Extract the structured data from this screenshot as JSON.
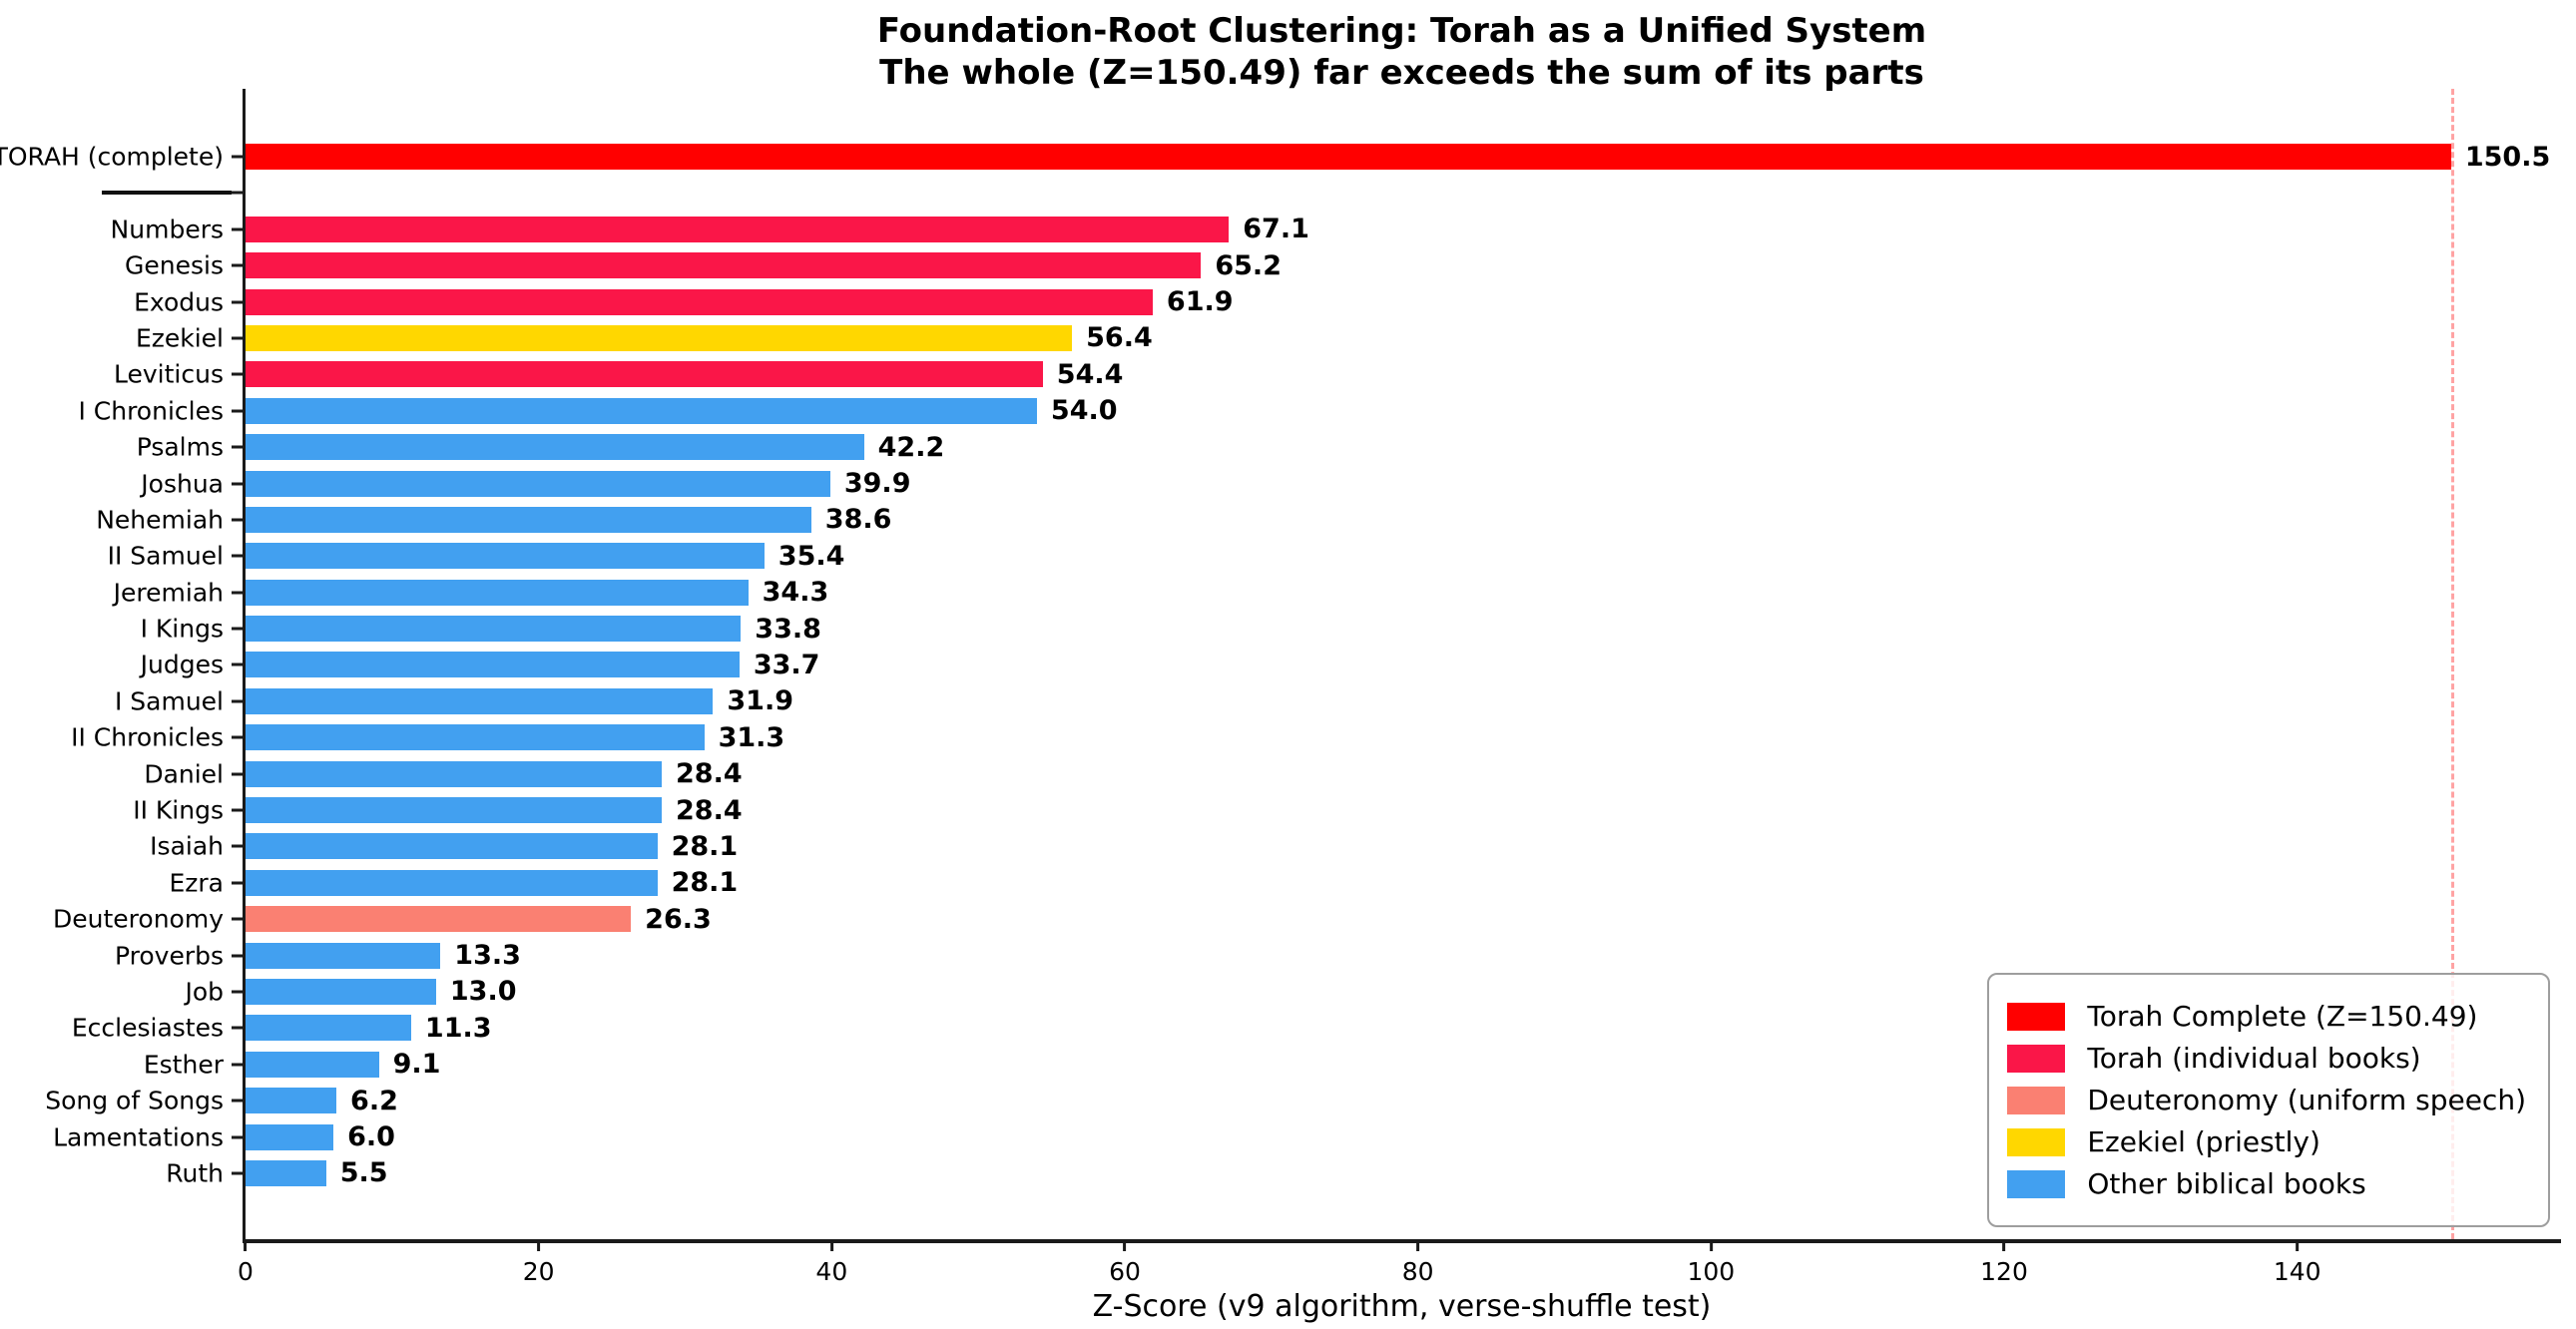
{
  "title": "Foundation-Root Clustering: Torah as a Unified System",
  "subtitle": "The whole (Z=150.49) far exceeds the sum of its parts",
  "xlabel": "Z-Score (v9 algorithm, verse-shuffle test)",
  "colors": {
    "torah_complete": "#ff0000",
    "torah_books": "#fa1648",
    "deuteronomy": "#fa8072",
    "ezekiel": "#ffd700",
    "other_books": "#42a0f0",
    "reference_line": "#ffa3a3",
    "axis": "#1a1a1a"
  },
  "chart_data": {
    "type": "bar",
    "orientation": "horizontal",
    "xlim": [
      0,
      158
    ],
    "xticks": [
      0,
      20,
      40,
      60,
      80,
      100,
      120,
      140
    ],
    "grid": false,
    "reference_line": {
      "value": 150.49,
      "style": "dashed",
      "color": "#ffa3a3"
    },
    "bars": [
      {
        "label": "TORAH (complete)",
        "value": 150.5,
        "value_label": "150.5",
        "color": "#ff0000",
        "group": "torah-complete"
      },
      {
        "separator": true
      },
      {
        "label": "Numbers",
        "value": 67.1,
        "value_label": "67.1",
        "color": "#fa1648",
        "group": "torah-books"
      },
      {
        "label": "Genesis",
        "value": 65.2,
        "value_label": "65.2",
        "color": "#fa1648",
        "group": "torah-books"
      },
      {
        "label": "Exodus",
        "value": 61.9,
        "value_label": "61.9",
        "color": "#fa1648",
        "group": "torah-books"
      },
      {
        "label": "Ezekiel",
        "value": 56.4,
        "value_label": "56.4",
        "color": "#ffd700",
        "group": "ezekiel"
      },
      {
        "label": "Leviticus",
        "value": 54.4,
        "value_label": "54.4",
        "color": "#fa1648",
        "group": "torah-books"
      },
      {
        "label": "I Chronicles",
        "value": 54.0,
        "value_label": "54.0",
        "color": "#42a0f0",
        "group": "other"
      },
      {
        "label": "Psalms",
        "value": 42.2,
        "value_label": "42.2",
        "color": "#42a0f0",
        "group": "other"
      },
      {
        "label": "Joshua",
        "value": 39.9,
        "value_label": "39.9",
        "color": "#42a0f0",
        "group": "other"
      },
      {
        "label": "Nehemiah",
        "value": 38.6,
        "value_label": "38.6",
        "color": "#42a0f0",
        "group": "other"
      },
      {
        "label": "II Samuel",
        "value": 35.4,
        "value_label": "35.4",
        "color": "#42a0f0",
        "group": "other"
      },
      {
        "label": "Jeremiah",
        "value": 34.3,
        "value_label": "34.3",
        "color": "#42a0f0",
        "group": "other"
      },
      {
        "label": "I Kings",
        "value": 33.8,
        "value_label": "33.8",
        "color": "#42a0f0",
        "group": "other"
      },
      {
        "label": "Judges",
        "value": 33.7,
        "value_label": "33.7",
        "color": "#42a0f0",
        "group": "other"
      },
      {
        "label": "I Samuel",
        "value": 31.9,
        "value_label": "31.9",
        "color": "#42a0f0",
        "group": "other"
      },
      {
        "label": "II Chronicles",
        "value": 31.3,
        "value_label": "31.3",
        "color": "#42a0f0",
        "group": "other"
      },
      {
        "label": "Daniel",
        "value": 28.4,
        "value_label": "28.4",
        "color": "#42a0f0",
        "group": "other"
      },
      {
        "label": "II Kings",
        "value": 28.4,
        "value_label": "28.4",
        "color": "#42a0f0",
        "group": "other"
      },
      {
        "label": "Isaiah",
        "value": 28.1,
        "value_label": "28.1",
        "color": "#42a0f0",
        "group": "other"
      },
      {
        "label": "Ezra",
        "value": 28.1,
        "value_label": "28.1",
        "color": "#42a0f0",
        "group": "other"
      },
      {
        "label": "Deuteronomy",
        "value": 26.3,
        "value_label": "26.3",
        "color": "#fa8072",
        "group": "deuteronomy"
      },
      {
        "label": "Proverbs",
        "value": 13.3,
        "value_label": "13.3",
        "color": "#42a0f0",
        "group": "other"
      },
      {
        "label": "Job",
        "value": 13.0,
        "value_label": "13.0",
        "color": "#42a0f0",
        "group": "other"
      },
      {
        "label": "Ecclesiastes",
        "value": 11.3,
        "value_label": "11.3",
        "color": "#42a0f0",
        "group": "other"
      },
      {
        "label": "Esther",
        "value": 9.1,
        "value_label": "9.1",
        "color": "#42a0f0",
        "group": "other"
      },
      {
        "label": "Song of Songs",
        "value": 6.2,
        "value_label": "6.2",
        "color": "#42a0f0",
        "group": "other"
      },
      {
        "label": "Lamentations",
        "value": 6.0,
        "value_label": "6.0",
        "color": "#42a0f0",
        "group": "other"
      },
      {
        "label": "Ruth",
        "value": 5.5,
        "value_label": "5.5",
        "color": "#42a0f0",
        "group": "other"
      }
    ],
    "legend": {
      "position": "lower right",
      "entries": [
        {
          "label": "Torah Complete (Z=150.49)",
          "color": "#ff0000"
        },
        {
          "label": "Torah (individual books)",
          "color": "#fa1648"
        },
        {
          "label": "Deuteronomy (uniform speech)",
          "color": "#fa8072"
        },
        {
          "label": "Ezekiel (priestly)",
          "color": "#ffd700"
        },
        {
          "label": "Other biblical books",
          "color": "#42a0f0"
        }
      ]
    }
  }
}
